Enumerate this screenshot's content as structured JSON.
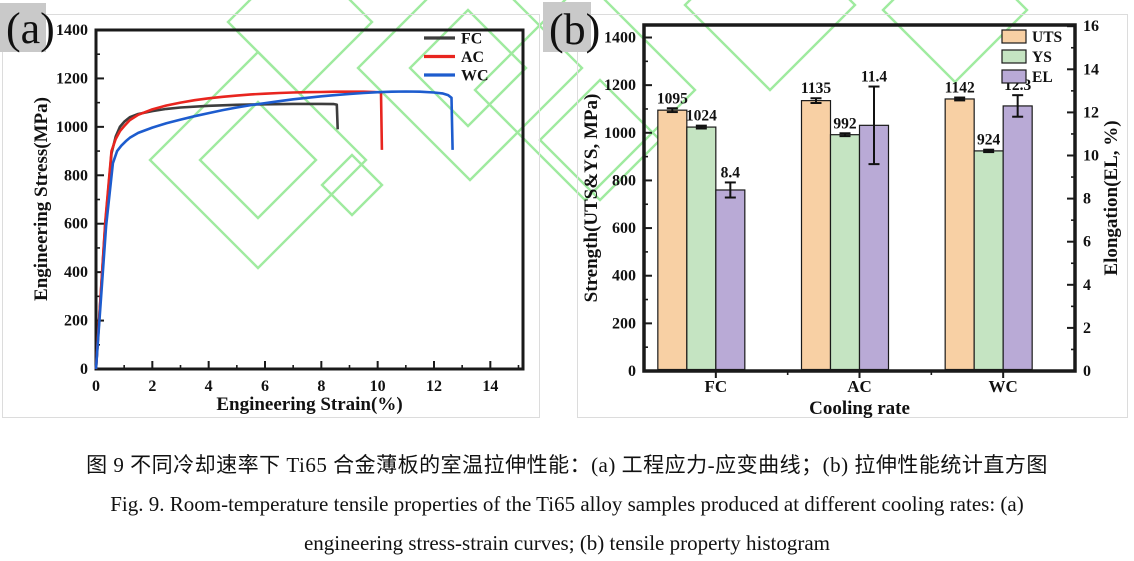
{
  "panel_labels": {
    "a": "(a)",
    "b": "(b)"
  },
  "chart_data": [
    {
      "type": "line",
      "panel": "(a)",
      "xlabel": "Engineering Strain(%)",
      "ylabel": "Engineering Stress(MPa)",
      "xlim": [
        0,
        15.16
      ],
      "ylim": [
        0,
        1400
      ],
      "xticks": [
        0,
        2,
        4,
        6,
        8,
        10,
        12,
        14
      ],
      "yticks": [
        0,
        200,
        400,
        600,
        800,
        1000,
        1200,
        1400
      ],
      "grid": false,
      "legend_position": "top-right",
      "series": [
        {
          "name": "FC",
          "color": "#3d3d3d",
          "points": [
            [
              0,
              0
            ],
            [
              0.33,
              600
            ],
            [
              0.55,
              890
            ],
            [
              0.7,
              960
            ],
            [
              0.85,
              1000
            ],
            [
              1.0,
              1021
            ],
            [
              1.2,
              1040
            ],
            [
              1.5,
              1053
            ],
            [
              2.0,
              1065
            ],
            [
              2.5,
              1074
            ],
            [
              3.0,
              1080
            ],
            [
              4.0,
              1087
            ],
            [
              5.0,
              1091
            ],
            [
              6.0,
              1093
            ],
            [
              7.0,
              1095
            ],
            [
              8.0,
              1095
            ],
            [
              8.45,
              1094
            ],
            [
              8.55,
              1092
            ],
            [
              8.58,
              990
            ]
          ]
        },
        {
          "name": "AC",
          "color": "#e8251f",
          "points": [
            [
              0,
              0
            ],
            [
              0.33,
              610
            ],
            [
              0.55,
              900
            ],
            [
              0.7,
              950
            ],
            [
              0.85,
              982
            ],
            [
              1.0,
              1003
            ],
            [
              1.2,
              1028
            ],
            [
              1.5,
              1050
            ],
            [
              2.0,
              1072
            ],
            [
              2.5,
              1088
            ],
            [
              3.0,
              1100
            ],
            [
              3.5,
              1110
            ],
            [
              4.0,
              1118
            ],
            [
              4.5,
              1124
            ],
            [
              5.0,
              1129
            ],
            [
              5.5,
              1134
            ],
            [
              6.0,
              1137
            ],
            [
              6.5,
              1140
            ],
            [
              7.0,
              1142
            ],
            [
              7.5,
              1143
            ],
            [
              8.0,
              1144
            ],
            [
              8.5,
              1145
            ],
            [
              9.0,
              1145
            ],
            [
              9.5,
              1145
            ],
            [
              9.9,
              1144
            ],
            [
              10.12,
              1142
            ],
            [
              10.15,
              905
            ]
          ]
        },
        {
          "name": "WC",
          "color": "#1d5cce",
          "points": [
            [
              0,
              0
            ],
            [
              0.36,
              590
            ],
            [
              0.6,
              850
            ],
            [
              0.75,
              900
            ],
            [
              0.9,
              922
            ],
            [
              1.05,
              940
            ],
            [
              1.2,
              955
            ],
            [
              1.5,
              975
            ],
            [
              2.0,
              997
            ],
            [
              2.5,
              1015
            ],
            [
              3.0,
              1030
            ],
            [
              3.5,
              1044
            ],
            [
              4.0,
              1057
            ],
            [
              4.5,
              1069
            ],
            [
              5.0,
              1080
            ],
            [
              5.5,
              1090
            ],
            [
              6.0,
              1098
            ],
            [
              6.5,
              1106
            ],
            [
              7.0,
              1114
            ],
            [
              7.5,
              1120
            ],
            [
              8.0,
              1126
            ],
            [
              8.5,
              1131
            ],
            [
              9.0,
              1136
            ],
            [
              9.5,
              1140
            ],
            [
              10.0,
              1143
            ],
            [
              10.5,
              1145
            ],
            [
              11.0,
              1146
            ],
            [
              11.5,
              1145
            ],
            [
              12.0,
              1142
            ],
            [
              12.3,
              1138
            ],
            [
              12.5,
              1131
            ],
            [
              12.62,
              1120
            ],
            [
              12.66,
              905
            ]
          ]
        }
      ]
    },
    {
      "type": "bar",
      "panel": "(b)",
      "xlabel": "Cooling rate",
      "ylabel_left": "Strength(UTS&YS, MPa)",
      "ylabel_right": "Elongation(EL, %)",
      "categories": [
        "FC",
        "AC",
        "WC"
      ],
      "ylim_left": [
        0,
        1452
      ],
      "ylim_right": [
        0,
        16.05
      ],
      "yticks_left": [
        0,
        200,
        400,
        600,
        800,
        1000,
        1200,
        1400
      ],
      "yticks_right": [
        0,
        2,
        4,
        6,
        8,
        10,
        12,
        14,
        16
      ],
      "legend_position": "top-right",
      "series": [
        {
          "name": "UTS",
          "axis": "left",
          "fill": "#f8d0a4",
          "edge": "#1a1a1a",
          "values": [
            1095,
            1135,
            1142
          ],
          "errors": [
            8,
            10,
            6
          ],
          "labels": [
            "1095",
            "1135",
            "1142"
          ]
        },
        {
          "name": "YS",
          "axis": "left",
          "fill": "#c5e4c2",
          "edge": "#1a1a1a",
          "values": [
            1024,
            992,
            924
          ],
          "errors": [
            6,
            6,
            5
          ],
          "labels": [
            "1024",
            "992",
            "924"
          ]
        },
        {
          "name": "EL",
          "axis": "right",
          "fill": "#b9aad6",
          "edge": "#1a1a1a",
          "values": [
            8.4,
            11.4,
            12.3
          ],
          "errors": [
            0.35,
            1.8,
            0.5
          ],
          "labels": [
            "8.4",
            "11.4",
            "12.3"
          ]
        }
      ]
    }
  ],
  "caption": {
    "line1": "图 9 不同冷却速率下 Ti65 合金薄板的室温拉伸性能：(a) 工程应力-应变曲线；(b) 拉伸性能统计直方图",
    "line2": "Fig. 9. Room-temperature tensile properties of the Ti65 alloy samples produced at different cooling rates: (a)",
    "line3": "engineering stress-strain curves; (b) tensile property histogram"
  },
  "colors": {
    "axis": "#1a1a1a",
    "watermark_green": "#8fe78f",
    "panel_label_bg": "#c9c9c9",
    "figure_border": "#dcdcdc",
    "fc_line": "#3d3d3d",
    "ac_line": "#e8251f",
    "wc_line": "#1d5cce",
    "uts_fill": "#f8d0a4",
    "ys_fill": "#c5e4c2",
    "el_fill": "#b9aad6"
  }
}
